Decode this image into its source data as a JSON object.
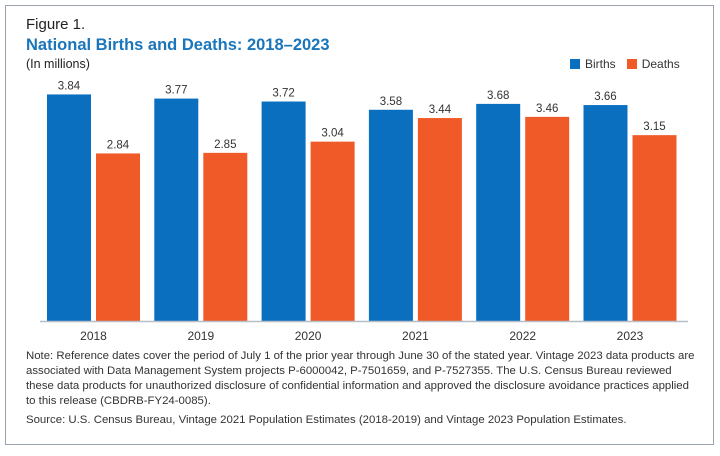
{
  "chart_data": {
    "type": "bar",
    "figure_label": "Figure 1.",
    "title": "National Births and Deaths: 2018–2023",
    "subtitle": "(In millions)",
    "categories": [
      "2018",
      "2019",
      "2020",
      "2021",
      "2022",
      "2023"
    ],
    "series": [
      {
        "name": "Births",
        "color": "#0b6fc0",
        "values": [
          3.84,
          3.77,
          3.72,
          3.58,
          3.68,
          3.66
        ]
      },
      {
        "name": "Deaths",
        "color": "#f05a28",
        "values": [
          2.84,
          2.85,
          3.04,
          3.44,
          3.46,
          3.15
        ]
      }
    ],
    "ylim": [
      0,
      4
    ],
    "grid": false,
    "legend_position": "top-right",
    "data_labels": true
  },
  "note": "Note: Reference dates cover the period of July 1 of the prior year through June 30 of the stated year. Vintage 2023 data products are associated with Data Management System projects P-6000042, P-7501659, and P-7527355. The U.S. Census Bureau reviewed these data products for unauthorized disclosure of confidential information and approved the disclosure avoidance practices applied to this release (CBDRB-FY24-0085).",
  "source": "Source: U.S. Census Bureau, Vintage 2021 Population Estimates (2018-2019) and Vintage 2023 Population Estimates."
}
